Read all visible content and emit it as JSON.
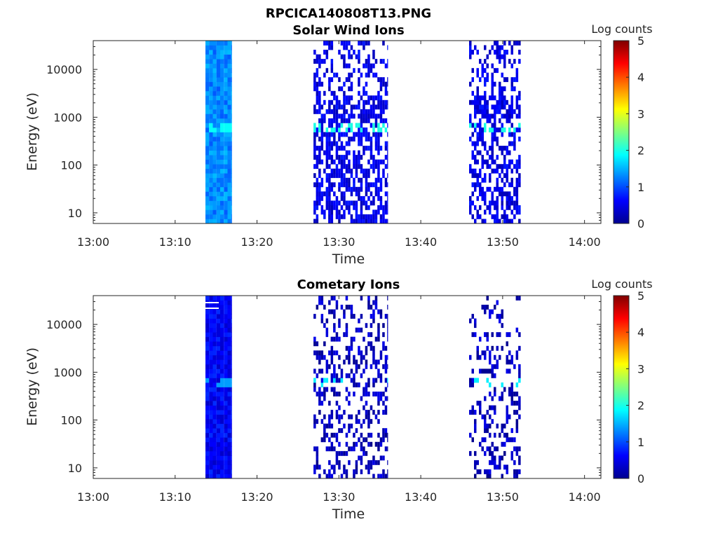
{
  "figure": {
    "title": "RPCICA140808T13.PNG"
  },
  "chart_data": [
    {
      "type": "heatmap",
      "title": "Solar Wind Ions",
      "xlabel": "Time",
      "ylabel": "Energy (eV)",
      "x_ticks": [
        "13:00",
        "13:10",
        "13:20",
        "13:30",
        "13:40",
        "13:50",
        "14:00"
      ],
      "y_ticks": [
        "10",
        "100",
        "1000",
        "10000"
      ],
      "y_scale": "log",
      "ylim": [
        6,
        40000
      ],
      "xlim": [
        "13:00",
        "14:02"
      ],
      "colorbar": {
        "label": "Log counts",
        "ticks": [
          "0",
          "1",
          "2",
          "3",
          "4",
          "5"
        ],
        "range": [
          0,
          5
        ],
        "colormap": "jet"
      },
      "segments": [
        {
          "start": "13:13.7",
          "end": "13:16.9",
          "density": 1.0,
          "level": 1.2,
          "peak_level": 1.9,
          "peak_energy": 600
        },
        {
          "start": "13:26.9",
          "end": "13:36.0",
          "density": 0.6,
          "level": 0.4,
          "peak_level": 2.0,
          "peak_energy": 600
        },
        {
          "start": "13:45.9",
          "end": "13:52.2",
          "density": 0.55,
          "level": 0.4,
          "peak_level": 2.0,
          "peak_energy": 600
        }
      ]
    },
    {
      "type": "heatmap",
      "title": "Cometary Ions",
      "xlabel": "Time",
      "ylabel": "Energy (eV)",
      "x_ticks": [
        "13:00",
        "13:10",
        "13:20",
        "13:30",
        "13:40",
        "13:50",
        "14:00"
      ],
      "y_ticks": [
        "10",
        "100",
        "1000",
        "10000"
      ],
      "y_scale": "log",
      "ylim": [
        6,
        40000
      ],
      "xlim": [
        "13:00",
        "14:02"
      ],
      "colorbar": {
        "label": "Log counts",
        "ticks": [
          "0",
          "1",
          "2",
          "3",
          "4",
          "5"
        ],
        "range": [
          0,
          5
        ],
        "colormap": "jet"
      },
      "segments": [
        {
          "start": "13:13.7",
          "end": "13:16.9",
          "density": 1.0,
          "level": 0.5,
          "peak_level": 1.4,
          "peak_energy": 600
        },
        {
          "start": "13:26.9",
          "end": "13:36.0",
          "density": 0.35,
          "level": 0.2,
          "peak_level": 1.8,
          "peak_energy": 600
        },
        {
          "start": "13:45.9",
          "end": "13:52.2",
          "density": 0.3,
          "level": 0.2,
          "peak_level": 1.8,
          "peak_energy": 600
        }
      ]
    }
  ]
}
